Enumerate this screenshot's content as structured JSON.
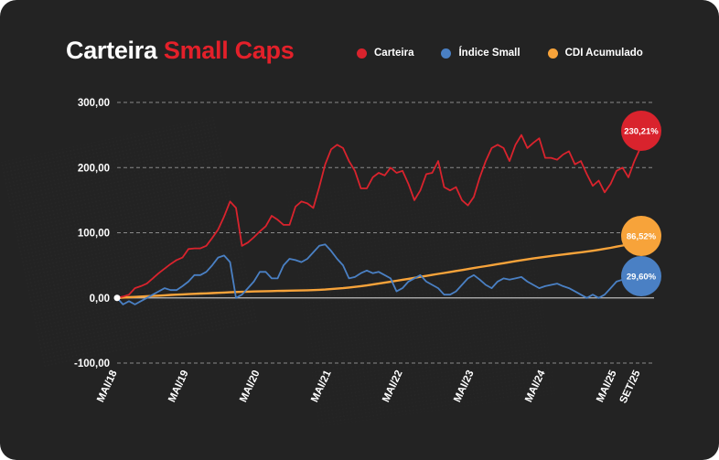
{
  "header": {
    "title_main": "Carteira",
    "title_accent": "Small Caps"
  },
  "colors": {
    "background": "#232323",
    "carteira": "#d9232d",
    "indice_small": "#4a80c4",
    "cdi": "#f7a33a",
    "grid": "#8a8a8a"
  },
  "chart_data": {
    "type": "line",
    "xlabel": "",
    "ylabel": "",
    "ylim": [
      -100,
      300
    ],
    "y_ticks": [
      300,
      200,
      100,
      0,
      -100
    ],
    "y_tick_labels": [
      "300,00",
      "200,00",
      "100,00",
      "0,00",
      "-100,00"
    ],
    "x_ticks": [
      0,
      12,
      24,
      36,
      48,
      60,
      72,
      84,
      88
    ],
    "x_tick_labels": [
      "MAI/18",
      "MAI/19",
      "MAI/20",
      "MAI/21",
      "MAI/22",
      "MAI/23",
      "MAI/24",
      "MAI/25",
      "SET/25"
    ],
    "x_unit": "months since MAI/18",
    "grid": "horizontal-dashed",
    "legend_position": "top-right",
    "series": [
      {
        "name": "Carteira",
        "color": "#d9232d",
        "end_label": "230,21%",
        "values": [
          0,
          2,
          5,
          15,
          18,
          22,
          30,
          38,
          45,
          52,
          58,
          62,
          75,
          76,
          76,
          80,
          92,
          105,
          125,
          148,
          138,
          80,
          85,
          93,
          102,
          110,
          126,
          120,
          112,
          112,
          140,
          148,
          145,
          138,
          170,
          205,
          228,
          235,
          230,
          210,
          195,
          168,
          168,
          185,
          192,
          188,
          200,
          192,
          195,
          175,
          150,
          165,
          190,
          192,
          210,
          170,
          165,
          170,
          150,
          142,
          155,
          185,
          210,
          230,
          235,
          230,
          210,
          235,
          250,
          230,
          238,
          245,
          215,
          215,
          212,
          220,
          225,
          205,
          210,
          190,
          172,
          180,
          162,
          175,
          195,
          200,
          185,
          210,
          230
        ]
      },
      {
        "name": "Índice Small",
        "color": "#4a80c4",
        "end_label": "29,60%",
        "values": [
          0,
          -10,
          -5,
          -10,
          -5,
          0,
          5,
          10,
          15,
          12,
          12,
          18,
          25,
          35,
          35,
          40,
          50,
          62,
          65,
          55,
          0,
          5,
          15,
          25,
          40,
          40,
          30,
          30,
          50,
          60,
          58,
          55,
          60,
          70,
          80,
          82,
          72,
          60,
          50,
          30,
          32,
          38,
          42,
          38,
          40,
          35,
          30,
          10,
          15,
          25,
          30,
          35,
          25,
          20,
          15,
          5,
          5,
          10,
          20,
          30,
          35,
          28,
          20,
          15,
          25,
          30,
          28,
          30,
          32,
          25,
          20,
          15,
          18,
          20,
          22,
          18,
          15,
          10,
          5,
          0,
          5,
          0,
          5,
          15,
          25,
          28,
          25,
          20,
          29.6
        ]
      },
      {
        "name": "CDI Acumulado",
        "color": "#f7a33a",
        "end_label": "86,52%",
        "values": [
          0,
          0.5,
          1,
          1.5,
          2,
          2.5,
          3,
          3.5,
          4,
          4.5,
          5,
          5.4,
          5.8,
          6.2,
          6.6,
          7,
          7.4,
          7.8,
          8.2,
          8.6,
          9,
          9.3,
          9.6,
          9.9,
          10.1,
          10.3,
          10.5,
          10.7,
          10.9,
          11.1,
          11.3,
          11.5,
          11.7,
          12,
          12.4,
          12.9,
          13.5,
          14.2,
          15,
          15.9,
          16.9,
          18,
          19.2,
          20.5,
          21.9,
          23.3,
          24.8,
          26.3,
          27.8,
          29.3,
          30.8,
          32.3,
          33.8,
          35.3,
          36.8,
          38.3,
          39.8,
          41.3,
          42.8,
          44.3,
          45.8,
          47.3,
          48.8,
          50.3,
          51.8,
          53.3,
          54.8,
          56.3,
          57.7,
          59.1,
          60.5,
          61.8,
          63.1,
          64.3,
          65.5,
          66.6,
          67.7,
          68.8,
          69.9,
          71.1,
          72.4,
          73.8,
          75.3,
          76.9,
          78.6,
          80.4,
          82.3,
          84.3,
          86.52
        ]
      }
    ]
  }
}
